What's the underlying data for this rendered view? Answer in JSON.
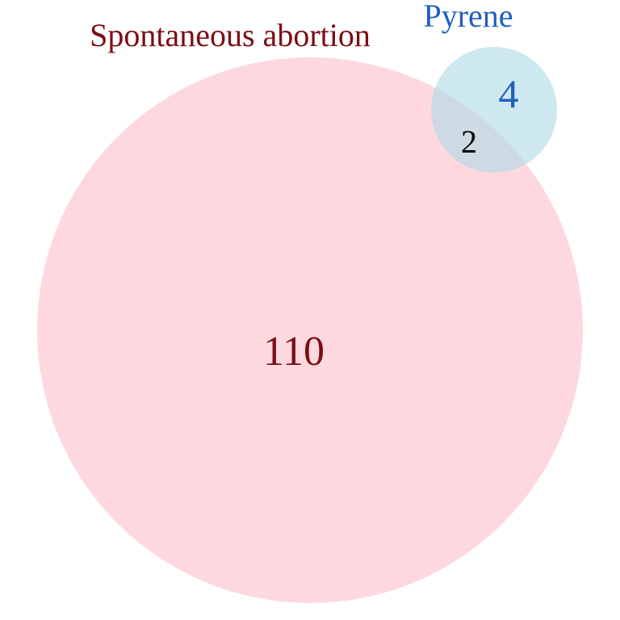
{
  "venn": {
    "sets": [
      {
        "name": "Spontaneous abortion",
        "only_count": "110",
        "fill_color": "#fdd5dc",
        "text_color": "#7c0d14"
      },
      {
        "name": "Pyrene",
        "only_count": "4",
        "fill_color": "#add8e6",
        "text_color": "#1f5fbf"
      }
    ],
    "overlap_count": "2",
    "overlap_text_color": "#000000"
  }
}
